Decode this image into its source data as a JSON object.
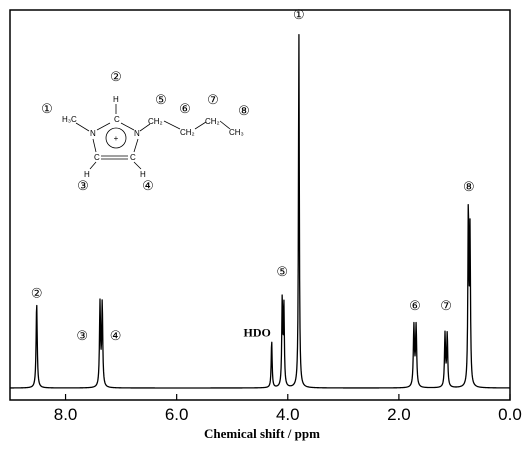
{
  "chart_data": {
    "type": "line",
    "title": "",
    "xlabel": "Chemical shift / ppm",
    "ylabel": "",
    "xlim": [
      9.0,
      0.0
    ],
    "reversed_x": true,
    "ylim": [
      0,
      1
    ],
    "xticks": [
      {
        "value": 8.0,
        "label": "8.0"
      },
      {
        "value": 6.0,
        "label": "6.0"
      },
      {
        "value": 4.0,
        "label": "4.0"
      },
      {
        "value": 2.0,
        "label": "2.0"
      },
      {
        "value": 0.0,
        "label": "0.0"
      }
    ],
    "grid": false,
    "legend": "none",
    "peaks": [
      {
        "shift": 8.52,
        "height": 0.225,
        "width": 0.012
      },
      {
        "shift": 7.38,
        "height": 0.22,
        "width": 0.011
      },
      {
        "shift": 7.34,
        "height": 0.22,
        "width": 0.011
      },
      {
        "shift": 4.29,
        "height": 0.125,
        "width": 0.01
      },
      {
        "shift": 4.1,
        "height": 0.23,
        "width": 0.01
      },
      {
        "shift": 4.07,
        "height": 0.21,
        "width": 0.01
      },
      {
        "shift": 3.8,
        "height": 0.94,
        "width": 0.009
      },
      {
        "shift": 1.73,
        "height": 0.16,
        "width": 0.012
      },
      {
        "shift": 1.69,
        "height": 0.16,
        "width": 0.012
      },
      {
        "shift": 1.17,
        "height": 0.14,
        "width": 0.011
      },
      {
        "shift": 1.13,
        "height": 0.14,
        "width": 0.011
      },
      {
        "shift": 0.75,
        "height": 0.47,
        "width": 0.01
      },
      {
        "shift": 0.72,
        "height": 0.4,
        "width": 0.01
      }
    ],
    "annotations": [
      {
        "label": "①",
        "shift": 3.8,
        "height": 0.99
      },
      {
        "label": "②",
        "shift": 8.52,
        "height": 0.252
      },
      {
        "label": "③",
        "shift": 7.7,
        "height": 0.14
      },
      {
        "label": "④",
        "shift": 7.1,
        "height": 0.14
      },
      {
        "label": "HDO",
        "shift": 4.55,
        "height": 0.15
      },
      {
        "label": "⑤",
        "shift": 4.1,
        "height": 0.31
      },
      {
        "label": "⑥",
        "shift": 1.71,
        "height": 0.22
      },
      {
        "label": "⑦",
        "shift": 1.15,
        "height": 0.22
      },
      {
        "label": "⑧",
        "shift": 0.74,
        "height": 0.535
      }
    ]
  },
  "structure": {
    "methyl": "H₃C",
    "ch2a": "CH₂",
    "ch2b": "CH₂",
    "ch2c": "CH₂",
    "ch3": "CH₃",
    "n1": "N",
    "n3": "N",
    "c2": "C",
    "c4": "C",
    "c5": "C",
    "h2": "H",
    "h4": "H",
    "h5": "H",
    "charge": "+",
    "labels": {
      "l1": "①",
      "l2": "②",
      "l3": "③",
      "l4": "④",
      "l5": "⑤",
      "l6": "⑥",
      "l7": "⑦",
      "l8": "⑧"
    }
  }
}
